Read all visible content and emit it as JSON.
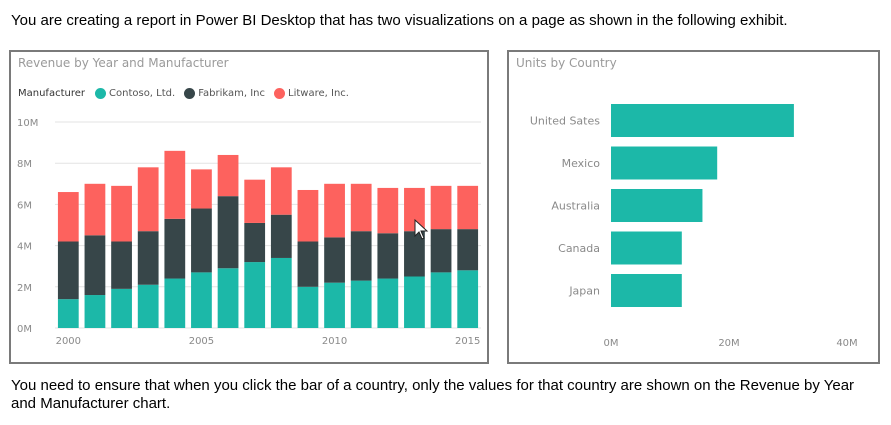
{
  "question_text": "You are creating a report in Power BI Desktop that has two visualizations on a page as shown in the following exhibit.",
  "footer_text": "You need to ensure that when you click the bar of a country, only the values for that country are shown on the Revenue by Year and Manufacturer chart.",
  "chart_data": [
    {
      "type": "bar",
      "stacked": true,
      "title": "Revenue by Year and Manufacturer",
      "legend_title": "Manufacturer",
      "legend_position": "top-left",
      "x": [
        2000,
        2001,
        2002,
        2003,
        2004,
        2005,
        2006,
        2007,
        2008,
        2009,
        2010,
        2011,
        2012,
        2013,
        2014,
        2015
      ],
      "x_ticks": [
        "2000",
        "2005",
        "2010",
        "2015"
      ],
      "y_ticks": [
        "0M",
        "2M",
        "4M",
        "6M",
        "8M",
        "10M"
      ],
      "ylim": [
        0,
        10
      ],
      "grid": true,
      "series": [
        {
          "name": "Contoso, Ltd.",
          "color": "#1cb8a8",
          "values": [
            1.4,
            1.6,
            1.9,
            2.1,
            2.4,
            2.7,
            2.9,
            3.2,
            3.4,
            2.0,
            2.2,
            2.3,
            2.4,
            2.5,
            2.7,
            2.8
          ]
        },
        {
          "name": "Fabrikam, Inc",
          "color": "#374649",
          "values": [
            2.8,
            2.9,
            2.3,
            2.6,
            2.9,
            3.1,
            3.5,
            1.9,
            2.1,
            2.2,
            2.2,
            2.4,
            2.2,
            2.2,
            2.1,
            2.0
          ]
        },
        {
          "name": "Litware, Inc.",
          "color": "#fd625e",
          "values": [
            2.4,
            2.5,
            2.7,
            3.1,
            3.3,
            1.9,
            2.0,
            2.1,
            2.3,
            2.5,
            2.6,
            2.3,
            2.2,
            2.1,
            2.1,
            2.1
          ]
        }
      ]
    },
    {
      "type": "bar",
      "orientation": "horizontal",
      "title": "Units by Country",
      "categories": [
        "United Sates",
        "Mexico",
        "Australia",
        "Canada",
        "Japan"
      ],
      "values": [
        31,
        18,
        15.5,
        12,
        12
      ],
      "color": "#1cb8a8",
      "x_ticks": [
        "0M",
        "20M",
        "40M"
      ],
      "xlim": [
        0,
        40
      ]
    }
  ]
}
